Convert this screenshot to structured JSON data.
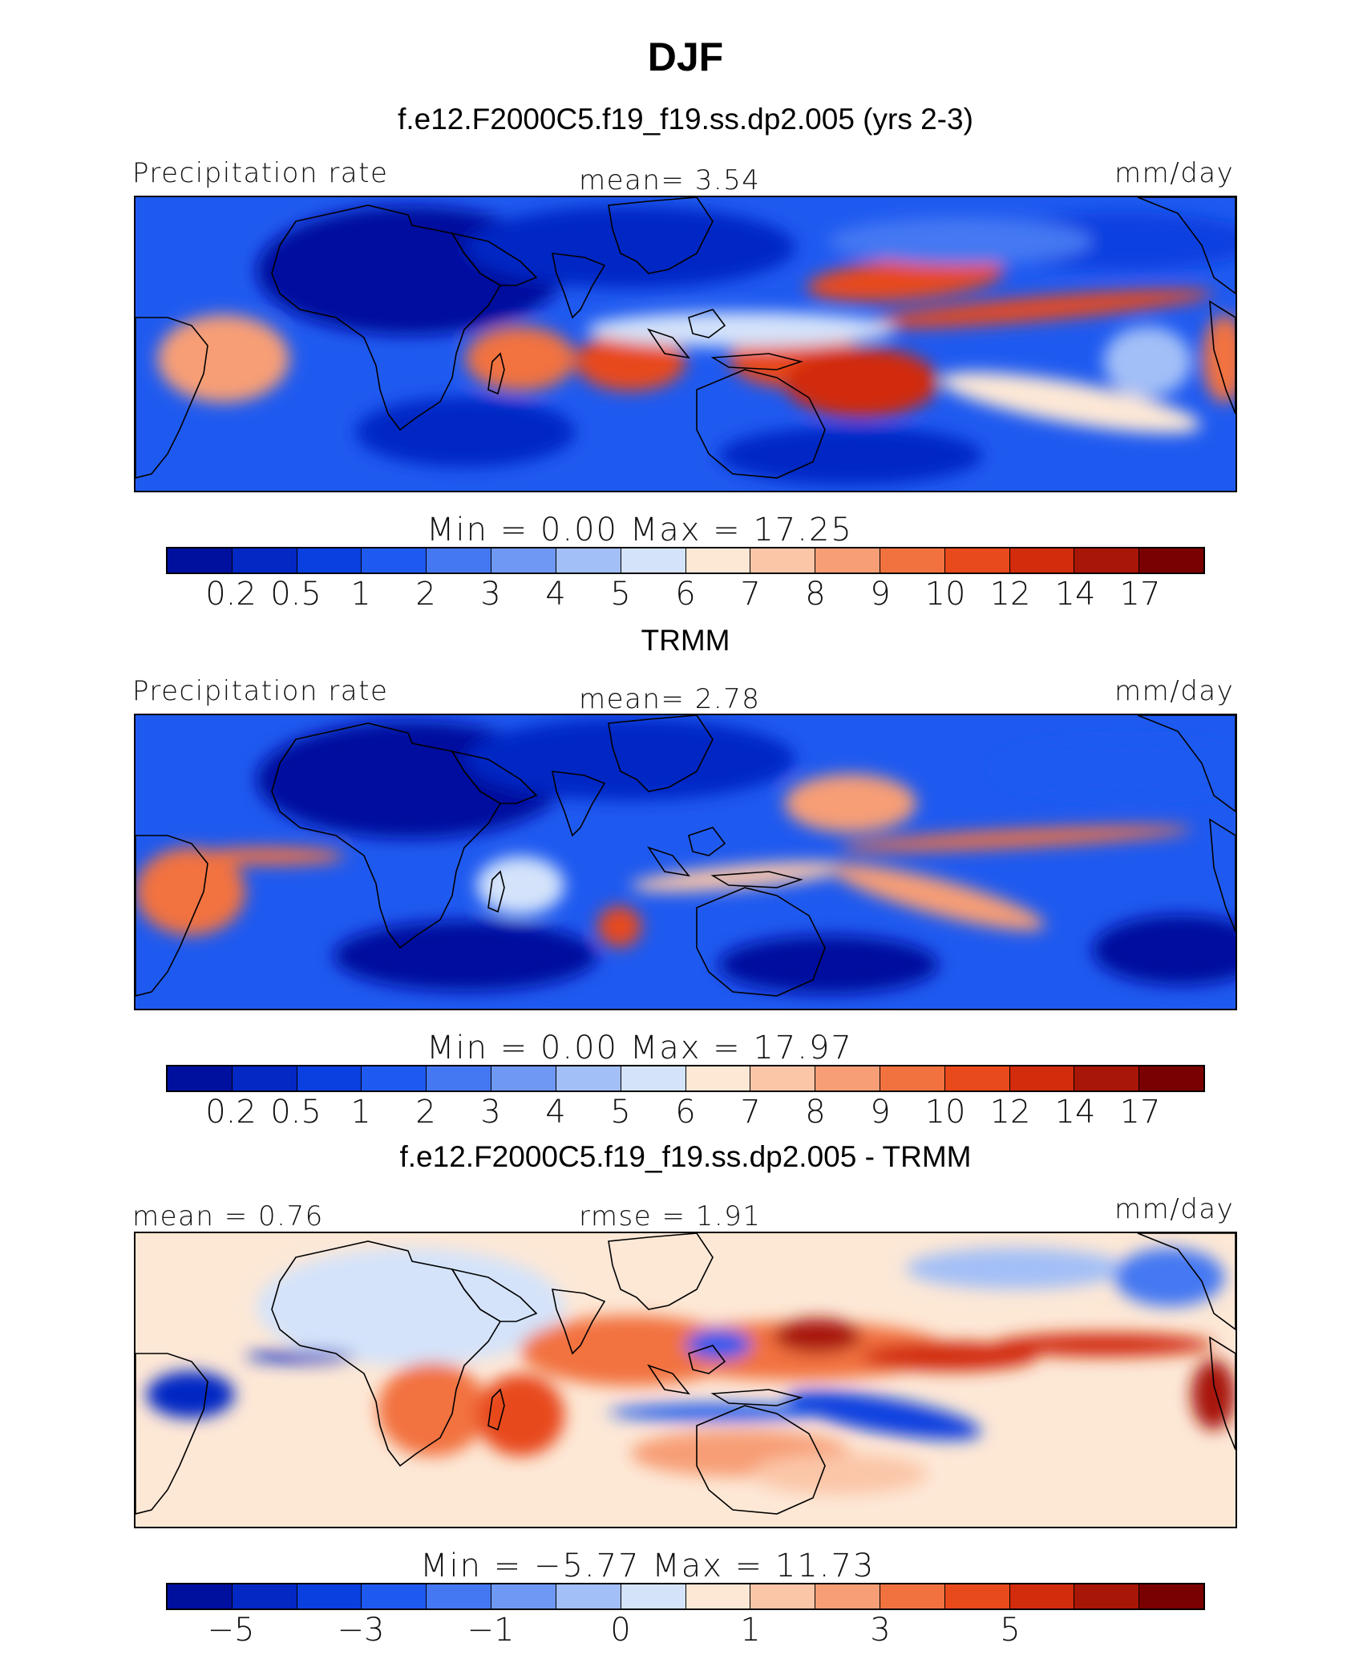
{
  "title": "DJF",
  "panels": [
    {
      "subtitle": "f.e12.F2000C5.f19_f19.ss.dp2.005 (yrs 2-3)",
      "left_label": "Precipitation rate",
      "center_label": "mean=    3.54",
      "right_label": "mm/day",
      "min_max": "Min  =     0.00  Max  =    17.25"
    },
    {
      "subtitle": "TRMM",
      "left_label": "Precipitation rate",
      "center_label": "mean=    2.78",
      "right_label": "mm/day",
      "min_max": "Min  =     0.00  Max  =    17.97"
    },
    {
      "subtitle": "f.e12.F2000C5.f19_f19.ss.dp2.005 - TRMM",
      "left_label": "mean  =    0.76",
      "center_label": "rmse  =    1.91",
      "right_label": "mm/day",
      "min_max": "Min  =   −5.77  Max  =    11.73"
    }
  ],
  "colorbar_colors": [
    "#00109e",
    "#0328c4",
    "#0a3fe0",
    "#1f5af0",
    "#4478f2",
    "#6f98f4",
    "#a3bff7",
    "#d4e3fa",
    "#fde8d6",
    "#fbc6a8",
    "#f79e76",
    "#f2723f",
    "#e84a1c",
    "#d12c0b",
    "#a81607",
    "#7a0101"
  ],
  "colorbar_labels_abs": [
    "0.2",
    "0.5",
    "1",
    "2",
    "3",
    "4",
    "5",
    "6",
    "7",
    "8",
    "9",
    "10",
    "12",
    "14",
    "17"
  ],
  "colorbar_labels_diff": [
    "−5",
    "",
    "−3",
    "",
    "−1",
    "",
    "0",
    "",
    "1",
    "",
    "3",
    "",
    "5",
    "",
    ""
  ],
  "chart_data": [
    {
      "type": "heatmap",
      "title": "f.e12.F2000C5.f19_f19.ss.dp2.005 (yrs 2-3)",
      "variable": "Precipitation rate",
      "units": "mm/day",
      "mean": 3.54,
      "min": 0.0,
      "max": 17.25,
      "contour_levels": [
        0.2,
        0.5,
        1,
        2,
        3,
        4,
        5,
        6,
        7,
        8,
        9,
        10,
        12,
        14,
        17
      ]
    },
    {
      "type": "heatmap",
      "title": "TRMM",
      "variable": "Precipitation rate",
      "units": "mm/day",
      "mean": 2.78,
      "min": 0.0,
      "max": 17.97,
      "contour_levels": [
        0.2,
        0.5,
        1,
        2,
        3,
        4,
        5,
        6,
        7,
        8,
        9,
        10,
        12,
        14,
        17
      ]
    },
    {
      "type": "heatmap",
      "title": "f.e12.F2000C5.f19_f19.ss.dp2.005 - TRMM",
      "units": "mm/day",
      "mean": 0.76,
      "rmse": 1.91,
      "min": -5.77,
      "max": 11.73,
      "contour_levels": [
        -5,
        -3,
        -1,
        0,
        1,
        3,
        5
      ]
    }
  ]
}
